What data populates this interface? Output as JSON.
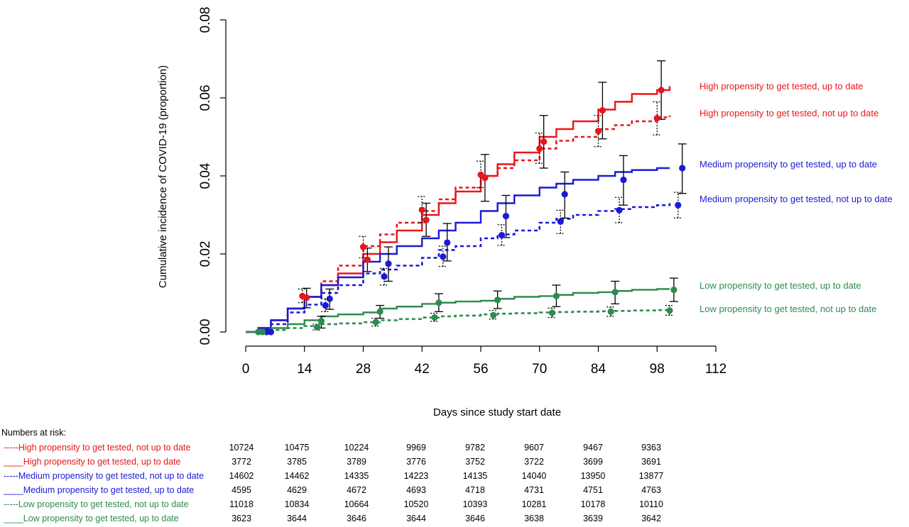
{
  "chart_data": {
    "type": "line",
    "title": "",
    "xlabel": "Days since study start date",
    "ylabel": "Cumulative incidence of COVID-19 (proportion)",
    "xlim": [
      0,
      112
    ],
    "ylim": [
      0,
      0.08
    ],
    "xticks": [
      0,
      14,
      28,
      42,
      56,
      70,
      84,
      98,
      112
    ],
    "yticks": [
      "0.00",
      "0.02",
      "0.04",
      "0.06",
      "0.08"
    ],
    "grid": false,
    "legend": "right, labels at line ends",
    "series": [
      {
        "name": "High propensity to get tested, up to date",
        "color": "#e8161b",
        "style": "solid",
        "x": [
          0,
          3,
          6,
          10,
          14,
          18,
          22,
          28,
          32,
          36,
          42,
          46,
          50,
          56,
          60,
          64,
          70,
          74,
          78,
          84,
          88,
          92,
          98,
          101
        ],
        "y": [
          0,
          0.001,
          0.003,
          0.006,
          0.009,
          0.012,
          0.015,
          0.02,
          0.023,
          0.026,
          0.03,
          0.033,
          0.036,
          0.04,
          0.043,
          0.046,
          0.05,
          0.052,
          0.054,
          0.057,
          0.059,
          0.061,
          0.062,
          0.063
        ],
        "markers": [
          {
            "x": 14.5,
            "y": 0.0088,
            "lo": 0.0062,
            "hi": 0.0112
          },
          {
            "x": 29,
            "y": 0.0185,
            "lo": 0.0155,
            "hi": 0.0215
          },
          {
            "x": 43,
            "y": 0.0287,
            "lo": 0.0245,
            "hi": 0.033
          },
          {
            "x": 57,
            "y": 0.0395,
            "lo": 0.0335,
            "hi": 0.0455
          },
          {
            "x": 71,
            "y": 0.0488,
            "lo": 0.042,
            "hi": 0.0555
          },
          {
            "x": 85,
            "y": 0.0568,
            "lo": 0.0495,
            "hi": 0.064
          },
          {
            "x": 99,
            "y": 0.062,
            "lo": 0.0545,
            "hi": 0.0695
          }
        ]
      },
      {
        "name": "High propensity to get tested, not up to date",
        "color": "#e8161b",
        "style": "dashed",
        "x": [
          0,
          3,
          6,
          10,
          14,
          18,
          22,
          28,
          32,
          36,
          42,
          46,
          50,
          56,
          60,
          64,
          70,
          74,
          78,
          84,
          88,
          92,
          98,
          101
        ],
        "y": [
          0,
          0.001,
          0.003,
          0.006,
          0.009,
          0.013,
          0.017,
          0.022,
          0.025,
          0.028,
          0.031,
          0.034,
          0.037,
          0.04,
          0.042,
          0.044,
          0.047,
          0.049,
          0.05,
          0.052,
          0.053,
          0.054,
          0.055,
          0.0555
        ],
        "markers": [
          {
            "x": 13.5,
            "y": 0.0092,
            "lo": 0.0075,
            "hi": 0.011
          },
          {
            "x": 28,
            "y": 0.0218,
            "lo": 0.019,
            "hi": 0.0245
          },
          {
            "x": 42,
            "y": 0.0313,
            "lo": 0.028,
            "hi": 0.0347
          },
          {
            "x": 56,
            "y": 0.0403,
            "lo": 0.037,
            "hi": 0.0438
          },
          {
            "x": 70,
            "y": 0.047,
            "lo": 0.0432,
            "hi": 0.051
          },
          {
            "x": 84,
            "y": 0.0515,
            "lo": 0.0475,
            "hi": 0.0555
          },
          {
            "x": 98,
            "y": 0.0548,
            "lo": 0.0505,
            "hi": 0.059
          }
        ]
      },
      {
        "name": "Medium propensity to get tested, up to date",
        "color": "#1a1ad6",
        "style": "solid",
        "x": [
          0,
          3,
          6,
          10,
          14,
          18,
          22,
          28,
          32,
          36,
          42,
          46,
          50,
          56,
          60,
          64,
          70,
          74,
          78,
          84,
          88,
          92,
          98,
          101
        ],
        "y": [
          0,
          0.001,
          0.003,
          0.006,
          0.009,
          0.012,
          0.014,
          0.018,
          0.02,
          0.022,
          0.024,
          0.026,
          0.028,
          0.031,
          0.033,
          0.035,
          0.037,
          0.038,
          0.039,
          0.04,
          0.041,
          0.0415,
          0.042,
          0.042
        ],
        "markers": [
          {
            "x": 6,
            "y": 0,
            "lo": 0,
            "hi": 0
          },
          {
            "x": 20,
            "y": 0.0085,
            "lo": 0.0058,
            "hi": 0.011
          },
          {
            "x": 34,
            "y": 0.0175,
            "lo": 0.013,
            "hi": 0.0218
          },
          {
            "x": 48,
            "y": 0.0229,
            "lo": 0.0182,
            "hi": 0.0278
          },
          {
            "x": 62,
            "y": 0.0297,
            "lo": 0.0242,
            "hi": 0.035
          },
          {
            "x": 76,
            "y": 0.0353,
            "lo": 0.0292,
            "hi": 0.041
          },
          {
            "x": 90,
            "y": 0.039,
            "lo": 0.0325,
            "hi": 0.0452
          },
          {
            "x": 104,
            "y": 0.042,
            "lo": 0.0355,
            "hi": 0.0482
          }
        ]
      },
      {
        "name": "Medium propensity to get tested, not up to date",
        "color": "#1a1ad6",
        "style": "dashed",
        "x": [
          0,
          3,
          6,
          10,
          14,
          18,
          22,
          28,
          32,
          36,
          42,
          46,
          50,
          56,
          60,
          64,
          70,
          74,
          78,
          84,
          88,
          92,
          98,
          101
        ],
        "y": [
          0,
          0.0005,
          0.002,
          0.005,
          0.007,
          0.01,
          0.012,
          0.015,
          0.016,
          0.017,
          0.019,
          0.021,
          0.022,
          0.024,
          0.025,
          0.026,
          0.028,
          0.029,
          0.03,
          0.031,
          0.0315,
          0.032,
          0.0325,
          0.033
        ],
        "markers": [
          {
            "x": 5,
            "y": 0,
            "lo": 0,
            "hi": 0
          },
          {
            "x": 19,
            "y": 0.0068,
            "lo": 0.0052,
            "hi": 0.0085
          },
          {
            "x": 33,
            "y": 0.0142,
            "lo": 0.012,
            "hi": 0.0163
          },
          {
            "x": 47,
            "y": 0.0193,
            "lo": 0.0168,
            "hi": 0.022
          },
          {
            "x": 61,
            "y": 0.0248,
            "lo": 0.0222,
            "hi": 0.0275
          },
          {
            "x": 75,
            "y": 0.0283,
            "lo": 0.0252,
            "hi": 0.0312
          },
          {
            "x": 89,
            "y": 0.0312,
            "lo": 0.028,
            "hi": 0.0345
          },
          {
            "x": 103,
            "y": 0.0325,
            "lo": 0.0292,
            "hi": 0.0358
          }
        ]
      },
      {
        "name": "Low propensity to get tested, up to date",
        "color": "#2e8b4f",
        "style": "solid",
        "x": [
          0,
          3,
          6,
          10,
          14,
          18,
          22,
          28,
          32,
          36,
          42,
          46,
          50,
          56,
          60,
          64,
          70,
          74,
          78,
          84,
          88,
          92,
          98,
          101
        ],
        "y": [
          0,
          0.0005,
          0.001,
          0.002,
          0.003,
          0.004,
          0.0045,
          0.005,
          0.006,
          0.0065,
          0.0072,
          0.0075,
          0.0078,
          0.008,
          0.0085,
          0.009,
          0.0092,
          0.0095,
          0.01,
          0.0102,
          0.0105,
          0.0108,
          0.011,
          0.011
        ],
        "markers": [
          {
            "x": 4,
            "y": 0,
            "lo": 0,
            "hi": 0
          },
          {
            "x": 18,
            "y": 0.0028,
            "lo": 0.001,
            "hi": 0.004
          },
          {
            "x": 32,
            "y": 0.0052,
            "lo": 0.0035,
            "hi": 0.0068
          },
          {
            "x": 46,
            "y": 0.0075,
            "lo": 0.0052,
            "hi": 0.0098
          },
          {
            "x": 60,
            "y": 0.0082,
            "lo": 0.006,
            "hi": 0.0105
          },
          {
            "x": 74,
            "y": 0.0092,
            "lo": 0.0065,
            "hi": 0.012
          },
          {
            "x": 88,
            "y": 0.0102,
            "lo": 0.0072,
            "hi": 0.013
          },
          {
            "x": 102,
            "y": 0.0108,
            "lo": 0.0078,
            "hi": 0.0138
          }
        ]
      },
      {
        "name": "Low propensity to get tested, not up to date",
        "color": "#2e8b4f",
        "style": "dashed",
        "x": [
          0,
          3,
          6,
          10,
          14,
          18,
          22,
          28,
          32,
          36,
          42,
          46,
          50,
          56,
          60,
          64,
          70,
          74,
          78,
          84,
          88,
          92,
          98,
          101
        ],
        "y": [
          0,
          0.0003,
          0.0005,
          0.001,
          0.0015,
          0.002,
          0.0022,
          0.0025,
          0.003,
          0.0033,
          0.0037,
          0.004,
          0.0042,
          0.0045,
          0.0047,
          0.0048,
          0.005,
          0.0051,
          0.0052,
          0.0053,
          0.0054,
          0.0055,
          0.0056,
          0.0057
        ],
        "markers": [
          {
            "x": 3,
            "y": 0,
            "lo": 0,
            "hi": 0
          },
          {
            "x": 17,
            "y": 0.0012,
            "lo": 0.0005,
            "hi": 0.002
          },
          {
            "x": 31,
            "y": 0.0025,
            "lo": 0.0015,
            "hi": 0.0035
          },
          {
            "x": 45,
            "y": 0.0037,
            "lo": 0.0027,
            "hi": 0.0048
          },
          {
            "x": 59,
            "y": 0.0043,
            "lo": 0.0033,
            "hi": 0.0055
          },
          {
            "x": 73,
            "y": 0.0049,
            "lo": 0.0037,
            "hi": 0.0061
          },
          {
            "x": 87,
            "y": 0.0052,
            "lo": 0.004,
            "hi": 0.0064
          },
          {
            "x": 101,
            "y": 0.0055,
            "lo": 0.0043,
            "hi": 0.0068
          }
        ]
      }
    ],
    "legend_labels": [
      {
        "text": "High propensity to get tested, up to date",
        "color": "#e8161b"
      },
      {
        "text": "High propensity to get tested, not up to date",
        "color": "#e8161b"
      },
      {
        "text": "Medium propensity to get tested, up to date",
        "color": "#1a1ad6"
      },
      {
        "text": "Medium propensity to get tested, not up to date",
        "color": "#1a1ad6"
      },
      {
        "text": "Low propensity to get tested, up to date",
        "color": "#2e8b4f"
      },
      {
        "text": "Low propensity to get tested, not up to date",
        "color": "#2e8b4f"
      }
    ]
  },
  "risk_table": {
    "title": "Numbers at risk:",
    "rows": [
      {
        "prefix": "-----",
        "label": "High propensity to get tested, not up to date",
        "color": "#e8161b",
        "values": [
          "10724",
          "10475",
          "10224",
          "9969",
          "9782",
          "9607",
          "9467",
          "9363"
        ]
      },
      {
        "prefix": "____",
        "label": "High propensity to get tested, up to date",
        "color": "#e8161b",
        "values": [
          "3772",
          "3785",
          "3789",
          "3776",
          "3752",
          "3722",
          "3699",
          "3691"
        ]
      },
      {
        "prefix": "-----",
        "label": "Medium propensity to get tested, not up to date",
        "color": "#1a1ad6",
        "values": [
          "14602",
          "14462",
          "14335",
          "14223",
          "14135",
          "14040",
          "13950",
          "13877"
        ]
      },
      {
        "prefix": "____",
        "label": "Medium propensity to get tested, up to date",
        "color": "#1a1ad6",
        "values": [
          "4595",
          "4629",
          "4672",
          "4693",
          "4718",
          "4731",
          "4751",
          "4763"
        ]
      },
      {
        "prefix": "-----",
        "label": "Low propensity to get tested, not up to date",
        "color": "#2e8b4f",
        "values": [
          "11018",
          "10834",
          "10664",
          "10520",
          "10393",
          "10281",
          "10178",
          "10110"
        ]
      },
      {
        "prefix": "____",
        "label": "Low propensity to get tested, up to date",
        "color": "#2e8b4f",
        "values": [
          "3623",
          "3644",
          "3646",
          "3644",
          "3646",
          "3638",
          "3639",
          "3642"
        ]
      }
    ]
  }
}
